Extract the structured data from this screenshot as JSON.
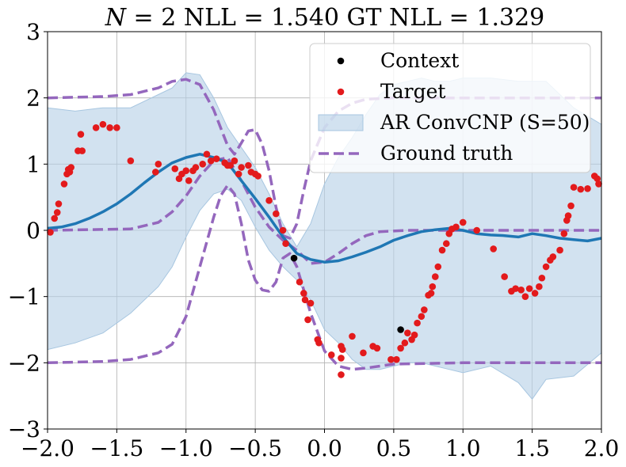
{
  "chart_data": {
    "type": "line",
    "title_parts": {
      "n_var": "N",
      "rest": " = 2 NLL = 1.540 GT NLL = 1.329"
    },
    "xlabel": "",
    "ylabel": "",
    "xlim": [
      -2.0,
      2.0
    ],
    "ylim": [
      -3,
      3
    ],
    "xticks": [
      -2.0,
      -1.5,
      -1.0,
      -0.5,
      0.0,
      0.5,
      1.0,
      1.5,
      2.0
    ],
    "xtick_labels": [
      "−2.0",
      "−1.5",
      "−1.0",
      "−0.5",
      "0.0",
      "0.5",
      "1.0",
      "1.5",
      "2.0"
    ],
    "yticks": [
      -3,
      -2,
      -1,
      0,
      1,
      2,
      3
    ],
    "ytick_labels": [
      "−3",
      "−2",
      "−1",
      "0",
      "1",
      "2",
      "3"
    ],
    "grid": true,
    "legend_position": "top-right",
    "colors": {
      "context": "#000000",
      "target": "#e31a1c",
      "band": "#b6d0e6",
      "band_edge": "#a7c6e0",
      "mean": "#1f77b4",
      "ground_truth": "#9467bd"
    },
    "legend": [
      {
        "label": "Context",
        "kind": "dot",
        "color": "#000000"
      },
      {
        "label": "Target",
        "kind": "dot",
        "color": "#e31a1c"
      },
      {
        "label": "AR ConvCNP (S=50)",
        "kind": "patch",
        "color": "#b6d0e6"
      },
      {
        "label": "Ground truth",
        "kind": "dashed",
        "color": "#9467bd"
      }
    ],
    "context_points": [
      {
        "x": -0.22,
        "y": -0.42
      },
      {
        "x": 0.55,
        "y": -1.5
      }
    ],
    "target_points": [
      [
        -1.98,
        -0.03
      ],
      [
        -1.95,
        0.18
      ],
      [
        -1.93,
        0.27
      ],
      [
        -1.92,
        0.4
      ],
      [
        -1.88,
        0.7
      ],
      [
        -1.86,
        0.85
      ],
      [
        -1.85,
        0.92
      ],
      [
        -1.84,
        0.88
      ],
      [
        -1.83,
        0.95
      ],
      [
        -1.78,
        1.2
      ],
      [
        -1.76,
        1.45
      ],
      [
        -1.75,
        1.2
      ],
      [
        -1.65,
        1.55
      ],
      [
        -1.6,
        1.6
      ],
      [
        -1.55,
        1.55
      ],
      [
        -1.5,
        1.55
      ],
      [
        -1.4,
        1.05
      ],
      [
        -1.22,
        0.88
      ],
      [
        -1.2,
        1.0
      ],
      [
        -1.08,
        0.93
      ],
      [
        -1.05,
        0.78
      ],
      [
        -1.03,
        0.85
      ],
      [
        -1.0,
        0.9
      ],
      [
        -0.98,
        0.75
      ],
      [
        -0.95,
        0.9
      ],
      [
        -0.93,
        0.95
      ],
      [
        -0.88,
        1.0
      ],
      [
        -0.85,
        1.15
      ],
      [
        -0.82,
        1.05
      ],
      [
        -0.78,
        1.08
      ],
      [
        -0.72,
        1.02
      ],
      [
        -0.7,
        0.98
      ],
      [
        -0.68,
        0.98
      ],
      [
        -0.65,
        1.05
      ],
      [
        -0.62,
        0.85
      ],
      [
        -0.6,
        0.95
      ],
      [
        -0.55,
        0.98
      ],
      [
        -0.53,
        0.88
      ],
      [
        -0.5,
        0.85
      ],
      [
        -0.48,
        0.82
      ],
      [
        -0.4,
        0.45
      ],
      [
        -0.35,
        0.25
      ],
      [
        -0.3,
        0.0
      ],
      [
        -0.28,
        -0.2
      ],
      [
        -0.18,
        -0.78
      ],
      [
        -0.15,
        -0.95
      ],
      [
        -0.14,
        -1.05
      ],
      [
        -0.12,
        -1.35
      ],
      [
        -0.1,
        -1.1
      ],
      [
        -0.05,
        -1.65
      ],
      [
        -0.04,
        -1.7
      ],
      [
        0.05,
        -1.88
      ],
      [
        0.12,
        -1.75
      ],
      [
        0.12,
        -1.93
      ],
      [
        0.13,
        -1.8
      ],
      [
        0.12,
        -2.18
      ],
      [
        0.2,
        -1.6
      ],
      [
        0.28,
        -1.85
      ],
      [
        0.35,
        -1.75
      ],
      [
        0.38,
        -1.78
      ],
      [
        0.48,
        -1.95
      ],
      [
        0.52,
        -1.95
      ],
      [
        0.55,
        -1.78
      ],
      [
        0.58,
        -1.7
      ],
      [
        0.6,
        -1.55
      ],
      [
        0.63,
        -1.65
      ],
      [
        0.65,
        -1.58
      ],
      [
        0.67,
        -1.4
      ],
      [
        0.7,
        -1.3
      ],
      [
        0.72,
        -1.2
      ],
      [
        0.75,
        -0.98
      ],
      [
        0.77,
        -0.95
      ],
      [
        0.78,
        -0.85
      ],
      [
        0.8,
        -0.7
      ],
      [
        0.82,
        -0.55
      ],
      [
        0.85,
        -0.3
      ],
      [
        0.88,
        -0.2
      ],
      [
        0.9,
        -0.05
      ],
      [
        0.92,
        0.02
      ],
      [
        0.95,
        0.05
      ],
      [
        1.0,
        0.12
      ],
      [
        1.1,
        0.0
      ],
      [
        1.22,
        -0.28
      ],
      [
        1.3,
        -0.7
      ],
      [
        1.35,
        -0.92
      ],
      [
        1.38,
        -0.88
      ],
      [
        1.42,
        -0.9
      ],
      [
        1.45,
        -1.0
      ],
      [
        1.48,
        -0.88
      ],
      [
        1.52,
        -0.95
      ],
      [
        1.55,
        -0.85
      ],
      [
        1.57,
        -0.72
      ],
      [
        1.6,
        -0.55
      ],
      [
        1.63,
        -0.45
      ],
      [
        1.65,
        -0.4
      ],
      [
        1.7,
        -0.3
      ],
      [
        1.73,
        -0.05
      ],
      [
        1.75,
        0.15
      ],
      [
        1.76,
        0.22
      ],
      [
        1.78,
        0.37
      ],
      [
        1.8,
        0.65
      ],
      [
        1.85,
        0.62
      ],
      [
        1.9,
        0.63
      ],
      [
        1.95,
        0.82
      ],
      [
        1.97,
        0.78
      ],
      [
        1.98,
        0.7
      ]
    ],
    "series": [
      {
        "role": "mean",
        "x": [
          -2.0,
          -1.9,
          -1.8,
          -1.7,
          -1.6,
          -1.5,
          -1.4,
          -1.3,
          -1.2,
          -1.1,
          -1.0,
          -0.9,
          -0.8,
          -0.7,
          -0.6,
          -0.5,
          -0.4,
          -0.3,
          -0.2,
          -0.1,
          0.0,
          0.1,
          0.2,
          0.3,
          0.4,
          0.5,
          0.6,
          0.7,
          0.8,
          0.9,
          1.0,
          1.1,
          1.2,
          1.3,
          1.4,
          1.5,
          1.6,
          1.7,
          1.8,
          1.9,
          2.0
        ],
        "y": [
          0.03,
          0.05,
          0.1,
          0.18,
          0.28,
          0.4,
          0.55,
          0.72,
          0.88,
          1.02,
          1.1,
          1.15,
          1.1,
          1.02,
          0.75,
          0.48,
          0.2,
          -0.1,
          -0.35,
          -0.44,
          -0.48,
          -0.46,
          -0.4,
          -0.33,
          -0.25,
          -0.15,
          -0.08,
          -0.02,
          0.01,
          0.03,
          0.0,
          -0.05,
          -0.07,
          -0.08,
          -0.1,
          -0.05,
          -0.08,
          -0.12,
          -0.14,
          -0.16,
          -0.12
        ]
      },
      {
        "role": "band_upper",
        "x": [
          -2.0,
          -1.8,
          -1.6,
          -1.4,
          -1.2,
          -1.1,
          -1.0,
          -0.9,
          -0.8,
          -0.7,
          -0.6,
          -0.5,
          -0.4,
          -0.3,
          -0.2,
          -0.1,
          0.0,
          0.1,
          0.2,
          0.3,
          0.4,
          0.5,
          0.6,
          0.7,
          0.8,
          0.9,
          1.0,
          1.2,
          1.4,
          1.6,
          1.8,
          2.0
        ],
        "y": [
          1.85,
          1.8,
          1.85,
          1.85,
          2.05,
          2.15,
          2.38,
          2.35,
          2.0,
          1.55,
          1.25,
          0.95,
          0.55,
          0.1,
          -0.25,
          0.1,
          0.7,
          1.1,
          1.4,
          1.75,
          2.05,
          2.2,
          2.25,
          2.3,
          2.25,
          2.25,
          2.3,
          2.3,
          2.25,
          2.25,
          1.85,
          1.6
        ]
      },
      {
        "role": "band_lower",
        "x": [
          -2.0,
          -1.8,
          -1.6,
          -1.4,
          -1.2,
          -1.1,
          -1.0,
          -0.9,
          -0.8,
          -0.7,
          -0.6,
          -0.5,
          -0.4,
          -0.3,
          -0.2,
          -0.1,
          0.0,
          0.1,
          0.2,
          0.3,
          0.4,
          0.5,
          0.6,
          0.7,
          0.8,
          0.9,
          1.0,
          1.2,
          1.4,
          1.5,
          1.6,
          1.8,
          2.0
        ],
        "y": [
          -1.8,
          -1.7,
          -1.55,
          -1.25,
          -0.85,
          -0.55,
          -0.1,
          0.3,
          0.55,
          0.62,
          0.45,
          0.05,
          -0.3,
          -0.55,
          -0.75,
          -1.05,
          -1.5,
          -1.7,
          -1.95,
          -2.1,
          -2.1,
          -2.05,
          -2.0,
          -2.0,
          -2.05,
          -2.1,
          -2.15,
          -2.05,
          -2.3,
          -2.55,
          -2.25,
          -2.2,
          -1.85
        ]
      },
      {
        "role": "ground_truth_mean",
        "x": [
          -2.0,
          -1.4,
          -1.2,
          -1.1,
          -1.0,
          -0.9,
          -0.8,
          -0.7,
          -0.6,
          -0.5,
          -0.4,
          -0.3,
          -0.2,
          -0.1,
          0.0,
          0.1,
          0.2,
          0.3,
          0.4,
          0.6,
          2.0
        ],
        "y": [
          0.0,
          0.02,
          0.12,
          0.28,
          0.52,
          0.82,
          1.05,
          1.1,
          0.75,
          0.35,
          0.05,
          -0.15,
          -0.3,
          -0.5,
          -0.48,
          -0.35,
          -0.2,
          -0.08,
          -0.02,
          0.0,
          0.0
        ]
      },
      {
        "role": "ground_truth_upper",
        "x": [
          -2.0,
          -1.6,
          -1.4,
          -1.2,
          -1.1,
          -1.0,
          -0.9,
          -0.8,
          -0.75,
          -0.7,
          -0.65,
          -0.6,
          -0.55,
          -0.5,
          -0.45,
          -0.4,
          -0.35,
          -0.3,
          -0.25,
          -0.2,
          -0.15,
          -0.1,
          0.0,
          0.1,
          0.2,
          0.3,
          0.5,
          1.0,
          2.0
        ],
        "y": [
          2.0,
          2.02,
          2.05,
          2.15,
          2.25,
          2.28,
          2.2,
          1.82,
          1.55,
          1.28,
          1.15,
          1.32,
          1.5,
          1.52,
          1.3,
          0.9,
          0.35,
          -0.08,
          -0.12,
          0.1,
          0.6,
          1.05,
          1.55,
          1.8,
          1.92,
          1.98,
          2.0,
          2.0,
          2.0
        ]
      },
      {
        "role": "ground_truth_lower",
        "x": [
          -2.0,
          -1.6,
          -1.4,
          -1.2,
          -1.1,
          -1.0,
          -0.9,
          -0.8,
          -0.75,
          -0.7,
          -0.65,
          -0.6,
          -0.55,
          -0.5,
          -0.45,
          -0.4,
          -0.35,
          -0.3,
          -0.25,
          -0.2,
          -0.1,
          0.0,
          0.1,
          0.2,
          0.3,
          0.5,
          1.0,
          2.0
        ],
        "y": [
          -2.0,
          -1.98,
          -1.95,
          -1.85,
          -1.72,
          -1.3,
          -0.55,
          0.2,
          0.52,
          0.68,
          0.55,
          0.1,
          -0.45,
          -0.75,
          -0.9,
          -0.92,
          -0.78,
          -0.42,
          -0.35,
          -0.55,
          -1.25,
          -1.82,
          -2.05,
          -2.1,
          -2.08,
          -2.02,
          -2.0,
          -2.0
        ]
      }
    ]
  }
}
